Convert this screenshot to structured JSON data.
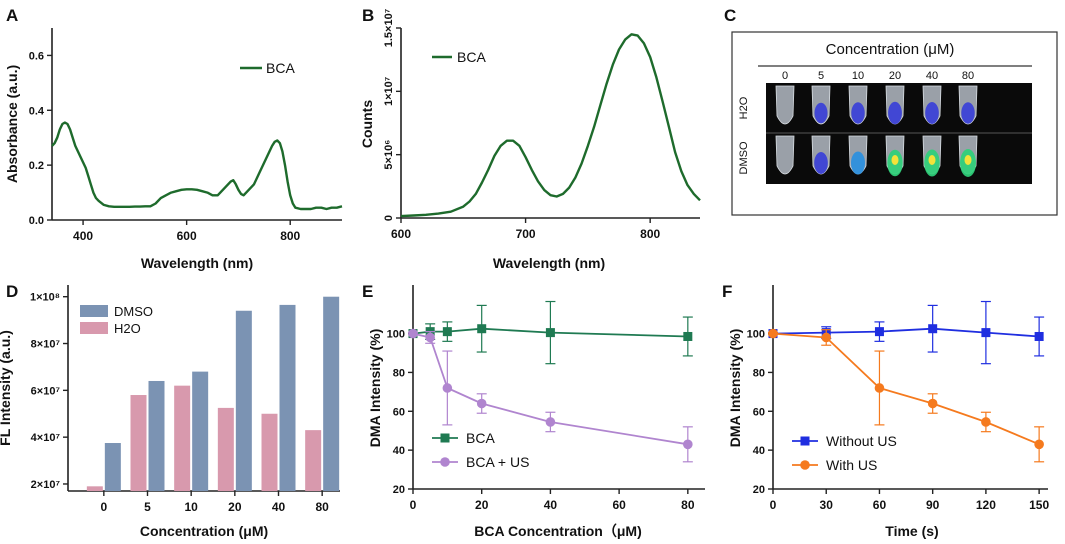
{
  "colors": {
    "green": "#1e6b2c",
    "teal": "#1f7a52",
    "lavender": "#b085cf",
    "blue_bar": "#7b93b3",
    "pink_bar": "#d899ad",
    "blue": "#1f2ee0",
    "orange": "#f57a1e"
  },
  "panels": {
    "A": {
      "letter": "A"
    },
    "B": {
      "letter": "B"
    },
    "C": {
      "letter": "C"
    },
    "D": {
      "letter": "D"
    },
    "E": {
      "letter": "E"
    },
    "F": {
      "letter": "F"
    }
  },
  "imaging": {
    "title": "Concentration (μM)",
    "concentrations": [
      "0",
      "5",
      "10",
      "20",
      "40",
      "80"
    ],
    "rows": [
      "H2O",
      "DMSO"
    ],
    "intensity": [
      [
        0,
        0.25,
        0.35,
        0.45,
        0.4,
        0.35
      ],
      [
        0,
        0.4,
        0.5,
        0.85,
        0.9,
        1.0
      ]
    ]
  },
  "chart_data": [
    {
      "id": "A",
      "type": "line",
      "xlabel": "Wavelength (nm)",
      "ylabel": "Absorbance (a.u.)",
      "xlim": [
        340,
        900
      ],
      "ylim": [
        0,
        0.7
      ],
      "xticks": [
        400,
        600,
        800
      ],
      "yticks": [
        0.0,
        0.2,
        0.4,
        0.6
      ],
      "ytick_labels": [
        "0.0",
        "0.2",
        "0.4",
        "0.6"
      ],
      "legend": "top-right",
      "series": [
        {
          "name": "BCA",
          "x": [
            340,
            345,
            350,
            355,
            360,
            365,
            370,
            375,
            380,
            385,
            390,
            395,
            400,
            405,
            410,
            415,
            420,
            425,
            430,
            440,
            450,
            460,
            470,
            480,
            490,
            500,
            510,
            520,
            530,
            540,
            550,
            560,
            570,
            580,
            590,
            600,
            610,
            620,
            630,
            640,
            650,
            660,
            670,
            675,
            680,
            685,
            690,
            695,
            700,
            705,
            710,
            720,
            730,
            740,
            750,
            760,
            765,
            770,
            775,
            780,
            785,
            790,
            795,
            800,
            805,
            810,
            820,
            830,
            840,
            850,
            860,
            870,
            880,
            890,
            900
          ],
          "y": [
            0.27,
            0.28,
            0.3,
            0.33,
            0.35,
            0.355,
            0.35,
            0.33,
            0.3,
            0.27,
            0.25,
            0.23,
            0.21,
            0.19,
            0.16,
            0.13,
            0.1,
            0.08,
            0.07,
            0.055,
            0.05,
            0.048,
            0.048,
            0.048,
            0.048,
            0.049,
            0.049,
            0.05,
            0.05,
            0.06,
            0.08,
            0.09,
            0.1,
            0.105,
            0.11,
            0.112,
            0.112,
            0.11,
            0.105,
            0.1,
            0.09,
            0.09,
            0.11,
            0.12,
            0.13,
            0.14,
            0.145,
            0.13,
            0.11,
            0.095,
            0.09,
            0.11,
            0.13,
            0.17,
            0.21,
            0.25,
            0.27,
            0.285,
            0.29,
            0.28,
            0.25,
            0.2,
            0.14,
            0.09,
            0.06,
            0.045,
            0.04,
            0.04,
            0.04,
            0.045,
            0.045,
            0.04,
            0.045,
            0.045,
            0.05
          ]
        }
      ]
    },
    {
      "id": "B",
      "type": "line",
      "xlabel": "Wavelength (nm)",
      "ylabel": "Counts",
      "xlim": [
        600,
        840
      ],
      "ylim": [
        0,
        15000000
      ],
      "xticks": [
        600,
        700,
        800
      ],
      "ytick_values": [
        0,
        5000000,
        10000000,
        15000000
      ],
      "ytick_labels": [
        "0",
        "5×10⁶",
        "1×10⁷",
        "1.5×10⁷"
      ],
      "legend": "top-left",
      "series": [
        {
          "name": "BCA",
          "x": [
            600,
            610,
            620,
            630,
            640,
            650,
            655,
            660,
            665,
            670,
            675,
            680,
            685,
            690,
            695,
            700,
            705,
            710,
            715,
            720,
            725,
            730,
            735,
            740,
            745,
            750,
            755,
            760,
            765,
            770,
            775,
            780,
            785,
            790,
            795,
            800,
            805,
            810,
            815,
            820,
            825,
            830,
            835,
            840
          ],
          "y": [
            150000,
            200000,
            250000,
            350000,
            500000,
            900000,
            1300000,
            1900000,
            2800000,
            3800000,
            4900000,
            5700000,
            6100000,
            6100000,
            5700000,
            4800000,
            3800000,
            2900000,
            2200000,
            1800000,
            1700000,
            1900000,
            2400000,
            3200000,
            4300000,
            5700000,
            7200000,
            8900000,
            10600000,
            12100000,
            13300000,
            14100000,
            14500000,
            14400000,
            13800000,
            12700000,
            11100000,
            9200000,
            7200000,
            5200000,
            3700000,
            2600000,
            1900000,
            1400000
          ]
        }
      ]
    },
    {
      "id": "D",
      "type": "bar",
      "xlabel": "Concentration (μM)",
      "ylabel": "FL Intensity (a.u.)",
      "categories": [
        "0",
        "5",
        "10",
        "20",
        "40",
        "80"
      ],
      "ylim": [
        17000000,
        105000000
      ],
      "ytick_values": [
        20000000,
        40000000,
        60000000,
        80000000,
        100000000
      ],
      "ytick_labels": [
        "2×10⁷",
        "4×10⁷",
        "6×10⁷",
        "8×10⁷",
        "1×10⁸"
      ],
      "legend": "top-left",
      "series": [
        {
          "name": "H2O",
          "values": [
            19000000,
            58000000,
            62000000,
            52500000,
            50000000,
            43000000
          ]
        },
        {
          "name": "DMSO",
          "values": [
            37500000,
            64000000,
            68000000,
            94000000,
            96500000,
            100000000
          ]
        }
      ]
    },
    {
      "id": "E",
      "type": "line",
      "xlabel": "BCA Concentration（μM)",
      "ylabel": "DMA Intensity (%)",
      "xlim": [
        0,
        85
      ],
      "ylim": [
        20,
        125
      ],
      "xticks": [
        0,
        20,
        40,
        60,
        80
      ],
      "yticks": [
        20,
        40,
        60,
        80,
        100
      ],
      "legend": "bottom-left",
      "series": [
        {
          "name": "BCA",
          "x": [
            0,
            5,
            10,
            20,
            40,
            80
          ],
          "y": [
            100,
            101,
            101,
            102.5,
            100.5,
            98.5
          ],
          "err": [
            0.5,
            4,
            5,
            12,
            16,
            10
          ]
        },
        {
          "name": "BCA + US",
          "x": [
            0,
            5,
            10,
            20,
            40,
            80
          ],
          "y": [
            100,
            98,
            72,
            64,
            54.5,
            43
          ],
          "err": [
            0.5,
            3,
            19,
            5,
            5,
            9
          ]
        }
      ]
    },
    {
      "id": "F",
      "type": "line",
      "xlabel": "Time (s)",
      "ylabel": "DMA Intensity (%)",
      "xlim": [
        0,
        155
      ],
      "ylim": [
        20,
        125
      ],
      "xticks": [
        0,
        30,
        60,
        90,
        120,
        150
      ],
      "yticks": [
        20,
        40,
        60,
        80,
        100
      ],
      "legend": "bottom-left",
      "series": [
        {
          "name": "Without US",
          "x": [
            0,
            30,
            60,
            90,
            120,
            150
          ],
          "y": [
            100,
            100.5,
            101,
            102.5,
            100.5,
            98.5
          ],
          "err": [
            0.5,
            3,
            5,
            12,
            16,
            10
          ]
        },
        {
          "name": "With US",
          "x": [
            0,
            30,
            60,
            90,
            120,
            150
          ],
          "y": [
            100,
            98,
            72,
            64,
            54.5,
            43
          ],
          "err": [
            0.5,
            4,
            19,
            5,
            5,
            9
          ]
        }
      ]
    }
  ]
}
